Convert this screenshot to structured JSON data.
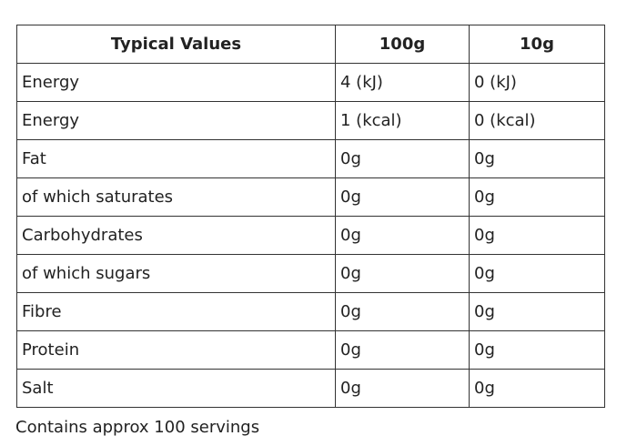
{
  "table": {
    "header": [
      "Typical Values",
      "100g",
      "10g"
    ],
    "rows": [
      [
        "Energy",
        "4 (kJ)",
        "0 (kJ)"
      ],
      [
        "Energy",
        "1 (kcal)",
        "0 (kcal)"
      ],
      [
        "Fat",
        "0g",
        "0g"
      ],
      [
        "of which saturates",
        "0g",
        "0g"
      ],
      [
        "Carbohydrates",
        "0g",
        "0g"
      ],
      [
        "of which sugars",
        "0g",
        "0g"
      ],
      [
        "Fibre",
        "0g",
        "0g"
      ],
      [
        "Protein",
        "0g",
        "0g"
      ],
      [
        "Salt",
        "0g",
        "0g"
      ]
    ]
  },
  "footer": "Contains approx 100 servings"
}
